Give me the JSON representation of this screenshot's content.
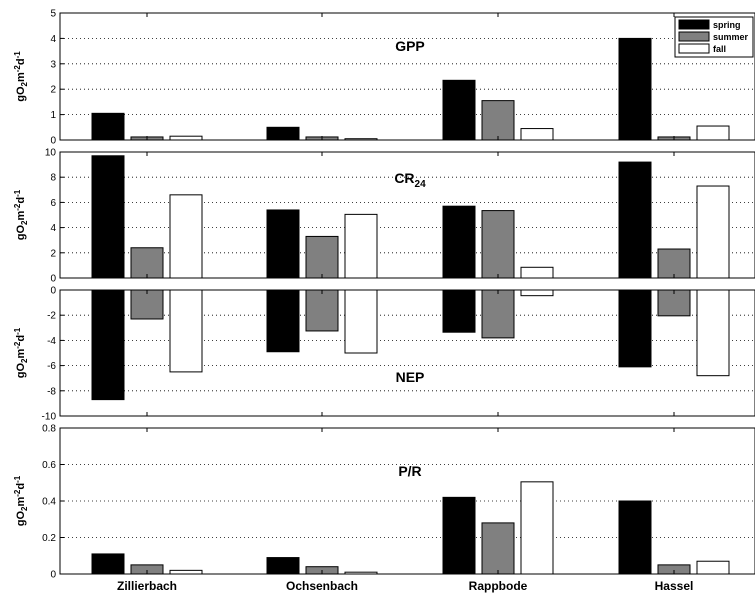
{
  "chart_data": [
    {
      "type": "bar",
      "panel_title": "GPP",
      "ylabel": "gO2m-2d-1",
      "categories": [
        "Zillierbach",
        "Ochsenbach",
        "Rappbode",
        "Hassel"
      ],
      "ylim": [
        0,
        5
      ],
      "yticks": [
        "0",
        "1",
        "2",
        "3",
        "4",
        "5"
      ],
      "grid": true,
      "legend": "top-right",
      "series": [
        {
          "name": "spring",
          "color": "#000000",
          "values": [
            1.05,
            0.5,
            2.35,
            4.0
          ]
        },
        {
          "name": "summer",
          "color": "#808080",
          "values": [
            0.12,
            0.12,
            1.55,
            0.12
          ]
        },
        {
          "name": "fall",
          "color": "#ffffff",
          "values": [
            0.15,
            0.05,
            0.45,
            0.55
          ]
        }
      ]
    },
    {
      "type": "bar",
      "panel_title": "CR24",
      "ylabel": "gO2m-2d-1",
      "categories": [
        "Zillierbach",
        "Ochsenbach",
        "Rappbode",
        "Hassel"
      ],
      "ylim": [
        0,
        10
      ],
      "yticks": [
        "0",
        "2",
        "4",
        "6",
        "8",
        "10"
      ],
      "grid": true,
      "series": [
        {
          "name": "spring",
          "color": "#000000",
          "values": [
            9.7,
            5.4,
            5.7,
            9.2
          ]
        },
        {
          "name": "summer",
          "color": "#808080",
          "values": [
            2.4,
            3.3,
            5.35,
            2.3
          ]
        },
        {
          "name": "fall",
          "color": "#ffffff",
          "values": [
            6.6,
            5.05,
            0.85,
            7.3
          ]
        }
      ]
    },
    {
      "type": "bar",
      "panel_title": "NEP",
      "ylabel": "gO2m-2d-1",
      "categories": [
        "Zillierbach",
        "Ochsenbach",
        "Rappbode",
        "Hassel"
      ],
      "ylim": [
        -10,
        0
      ],
      "yticks": [
        "-10",
        "-8",
        "-6",
        "-4",
        "-2",
        "0"
      ],
      "grid": true,
      "series": [
        {
          "name": "spring",
          "color": "#000000",
          "values": [
            -8.7,
            -4.9,
            -3.35,
            -6.1
          ]
        },
        {
          "name": "summer",
          "color": "#808080",
          "values": [
            -2.3,
            -3.25,
            -3.8,
            -2.05
          ]
        },
        {
          "name": "fall",
          "color": "#ffffff",
          "values": [
            -6.5,
            -5.0,
            -0.45,
            -6.8
          ]
        }
      ]
    },
    {
      "type": "bar",
      "panel_title": "P/R",
      "ylabel": "gO2m-2d-1",
      "categories": [
        "Zillierbach",
        "Ochsenbach",
        "Rappbode",
        "Hassel"
      ],
      "ylim": [
        0,
        0.8
      ],
      "yticks": [
        "0",
        "0.2",
        "0.4",
        "0.6",
        "0.8"
      ],
      "grid": true,
      "series": [
        {
          "name": "spring",
          "color": "#000000",
          "values": [
            0.11,
            0.09,
            0.42,
            0.4
          ]
        },
        {
          "name": "summer",
          "color": "#808080",
          "values": [
            0.05,
            0.04,
            0.28,
            0.05
          ]
        },
        {
          "name": "fall",
          "color": "#ffffff",
          "values": [
            0.02,
            0.01,
            0.505,
            0.07
          ]
        }
      ]
    }
  ]
}
